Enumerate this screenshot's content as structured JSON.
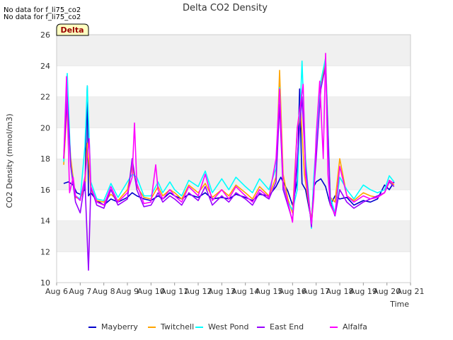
{
  "notes": [
    "No data for f_li75_co2",
    "No data for f_li75_co2"
  ],
  "badge": "Delta",
  "chart_data": {
    "type": "line",
    "title": "Delta CO2 Density",
    "xlabel": "Time",
    "ylabel": "CO2 Density (mmol/m3)",
    "xlim": [
      6,
      21
    ],
    "ylim": [
      10,
      26
    ],
    "x_tick_labels": [
      "Aug 6",
      "Aug 7",
      "Aug 8",
      "Aug 9",
      "Aug 10",
      "Aug 11",
      "Aug 12",
      "Aug 13",
      "Aug 14",
      "Aug 15",
      "Aug 16",
      "Aug 17",
      "Aug 18",
      "Aug 19",
      "Aug 20",
      "Aug 21"
    ],
    "x_ticks": [
      6,
      7,
      8,
      9,
      10,
      11,
      12,
      13,
      14,
      15,
      16,
      17,
      18,
      19,
      20,
      21
    ],
    "y_ticks": [
      10,
      12,
      14,
      16,
      18,
      20,
      22,
      24,
      26
    ],
    "grid": "horizontal bands",
    "legend_position": "bottom",
    "series": [
      {
        "name": "Mayberry",
        "color": "#0000cc",
        "x": [
          6.3,
          6.5,
          6.7,
          6.85,
          7.0,
          7.2,
          7.3,
          7.35,
          7.45,
          7.7,
          8.0,
          8.3,
          8.6,
          9.0,
          9.2,
          9.4,
          9.7,
          10.0,
          10.3,
          10.5,
          10.8,
          11.0,
          11.3,
          11.6,
          12.0,
          12.3,
          12.6,
          13.0,
          13.3,
          13.6,
          14.0,
          14.3,
          14.6,
          15.0,
          15.3,
          15.5,
          15.8,
          16.0,
          16.2,
          16.3,
          16.4,
          16.55,
          16.8,
          16.9,
          17.0,
          17.2,
          17.4,
          17.6,
          17.8,
          18.0,
          18.3,
          18.6,
          19.0,
          19.3,
          19.6,
          19.9,
          20.1,
          20.3
        ],
        "y": [
          16.4,
          16.5,
          16.3,
          15.8,
          15.7,
          16.0,
          22.7,
          15.6,
          15.8,
          15.3,
          15.0,
          15.4,
          15.2,
          15.5,
          15.8,
          15.6,
          15.4,
          15.3,
          15.6,
          15.4,
          15.8,
          15.6,
          15.4,
          15.7,
          15.5,
          15.8,
          15.4,
          15.5,
          15.4,
          15.7,
          15.5,
          15.3,
          15.7,
          15.6,
          16.2,
          16.8,
          15.9,
          15.0,
          16.6,
          22.5,
          16.4,
          16.0,
          14.0,
          16.2,
          16.5,
          16.7,
          16.2,
          15.0,
          15.6,
          15.4,
          15.5,
          15.0,
          15.3,
          15.2,
          15.4,
          16.3,
          16.0,
          16.5
        ]
      },
      {
        "name": "Twitchell",
        "color": "#ffa500",
        "x": [
          6.3,
          6.45,
          6.6,
          6.8,
          7.0,
          7.2,
          7.3,
          7.45,
          7.7,
          8.0,
          8.3,
          8.6,
          9.0,
          9.2,
          9.4,
          9.7,
          10.0,
          10.3,
          10.5,
          10.8,
          11.0,
          11.3,
          11.6,
          12.0,
          12.3,
          12.6,
          13.0,
          13.3,
          13.6,
          14.0,
          14.3,
          14.6,
          15.0,
          15.3,
          15.45,
          15.6,
          15.8,
          16.0,
          16.2,
          16.35,
          16.5,
          16.8,
          16.9,
          17.0,
          17.2,
          17.4,
          17.6,
          17.8,
          18.0,
          18.3,
          18.6,
          19.0,
          19.3,
          19.6,
          19.9,
          20.1,
          20.3
        ],
        "y": [
          17.6,
          21.5,
          18.0,
          15.5,
          15.4,
          16.2,
          19.0,
          16.0,
          15.3,
          15.2,
          15.7,
          15.3,
          16.0,
          17.5,
          16.2,
          15.5,
          15.4,
          16.2,
          15.6,
          16.0,
          15.8,
          15.4,
          16.3,
          15.8,
          16.4,
          15.5,
          16.0,
          15.6,
          16.3,
          15.8,
          15.4,
          16.2,
          15.6,
          16.8,
          23.7,
          17.0,
          15.4,
          14.5,
          20.0,
          21.0,
          17.0,
          14.0,
          16.5,
          18.5,
          22.5,
          24.5,
          15.5,
          15.2,
          18.0,
          15.6,
          15.3,
          15.8,
          15.6,
          15.5,
          15.8,
          16.6,
          16.3
        ]
      },
      {
        "name": "West Pond",
        "color": "#00ffff",
        "x": [
          6.3,
          6.45,
          6.6,
          6.8,
          7.0,
          7.2,
          7.3,
          7.45,
          7.7,
          8.0,
          8.3,
          8.6,
          9.0,
          9.2,
          9.4,
          9.7,
          10.0,
          10.3,
          10.5,
          10.8,
          11.0,
          11.3,
          11.6,
          12.0,
          12.3,
          12.6,
          13.0,
          13.3,
          13.6,
          14.0,
          14.3,
          14.6,
          15.0,
          15.3,
          15.45,
          15.6,
          15.8,
          16.0,
          16.2,
          16.4,
          16.55,
          16.8,
          16.9,
          17.0,
          17.2,
          17.4,
          17.6,
          17.8,
          18.0,
          18.3,
          18.6,
          19.0,
          19.3,
          19.6,
          19.9,
          20.1,
          20.3
        ],
        "y": [
          17.8,
          23.5,
          17.5,
          15.6,
          15.4,
          18.8,
          22.7,
          16.5,
          15.4,
          15.3,
          16.4,
          15.5,
          16.5,
          17.0,
          16.8,
          15.6,
          15.6,
          16.5,
          15.8,
          16.5,
          16.0,
          15.6,
          16.6,
          16.2,
          17.2,
          15.8,
          16.7,
          16.0,
          16.8,
          16.2,
          15.8,
          16.7,
          16.0,
          17.4,
          22.6,
          16.2,
          15.2,
          14.7,
          16.0,
          24.3,
          18.0,
          13.5,
          16.8,
          19.0,
          23.0,
          24.5,
          15.5,
          14.5,
          16.8,
          16.0,
          15.4,
          16.3,
          16.0,
          15.8,
          16.0,
          16.9,
          16.5
        ]
      },
      {
        "name": "East End",
        "color": "#9900ff",
        "x": [
          6.3,
          6.45,
          6.6,
          6.8,
          7.0,
          7.2,
          7.35,
          7.45,
          7.7,
          8.0,
          8.3,
          8.6,
          9.0,
          9.2,
          9.4,
          9.7,
          10.0,
          10.3,
          10.5,
          10.8,
          11.0,
          11.3,
          11.6,
          12.0,
          12.3,
          12.6,
          13.0,
          13.3,
          13.6,
          14.0,
          14.3,
          14.6,
          15.0,
          15.3,
          15.45,
          15.6,
          15.8,
          16.0,
          16.2,
          16.4,
          16.55,
          16.8,
          16.9,
          17.0,
          17.2,
          17.4,
          17.6,
          17.8,
          18.0,
          18.3,
          18.6,
          19.0,
          19.3,
          19.6,
          19.9,
          20.1,
          20.3
        ],
        "y": [
          18.0,
          22.0,
          17.5,
          15.2,
          14.5,
          16.5,
          10.8,
          16.2,
          15.0,
          14.8,
          16.0,
          15.0,
          15.4,
          18.0,
          16.0,
          14.9,
          15.0,
          15.8,
          15.2,
          15.6,
          15.4,
          15.0,
          15.8,
          15.3,
          16.2,
          15.0,
          15.6,
          15.2,
          15.8,
          15.4,
          15.0,
          15.8,
          15.4,
          16.5,
          21.5,
          16.0,
          15.0,
          14.0,
          18.0,
          22.0,
          17.5,
          13.6,
          16.0,
          18.0,
          22.5,
          24.0,
          15.2,
          14.3,
          16.0,
          15.2,
          14.8,
          15.2,
          15.4,
          15.6,
          15.8,
          16.5,
          16.2
        ]
      },
      {
        "name": "Alfalfa",
        "color": "#ff00ff",
        "x": [
          6.3,
          6.42,
          6.55,
          6.7,
          6.8,
          7.0,
          7.2,
          7.38,
          7.45,
          7.7,
          8.0,
          8.3,
          8.6,
          9.0,
          9.2,
          9.3,
          9.4,
          9.7,
          10.0,
          10.2,
          10.3,
          10.5,
          10.8,
          11.0,
          11.3,
          11.6,
          12.0,
          12.3,
          12.6,
          13.0,
          13.3,
          13.6,
          14.0,
          14.3,
          14.6,
          15.0,
          15.3,
          15.45,
          15.6,
          15.8,
          16.0,
          16.2,
          16.45,
          16.55,
          16.8,
          16.9,
          17.0,
          17.15,
          17.3,
          17.4,
          17.5,
          17.6,
          17.8,
          18.0,
          18.3,
          18.6,
          19.0,
          19.3,
          19.6,
          19.9,
          20.1,
          20.3
        ],
        "y": [
          18.0,
          23.3,
          15.8,
          16.8,
          15.6,
          15.3,
          16.8,
          19.3,
          16.2,
          15.2,
          15.0,
          16.2,
          15.2,
          15.8,
          16.8,
          20.3,
          16.4,
          15.1,
          15.2,
          17.6,
          16.0,
          15.4,
          16.0,
          15.6,
          15.2,
          16.2,
          15.6,
          17.0,
          15.3,
          16.0,
          15.4,
          16.2,
          15.6,
          15.2,
          16.0,
          15.5,
          18.0,
          22.5,
          16.4,
          15.2,
          13.9,
          20.0,
          22.8,
          17.0,
          13.8,
          15.5,
          19.5,
          23.0,
          18.0,
          24.8,
          17.0,
          15.0,
          14.4,
          17.5,
          15.6,
          15.2,
          15.6,
          15.4,
          15.5,
          15.8,
          16.6,
          16.4
        ]
      }
    ]
  }
}
